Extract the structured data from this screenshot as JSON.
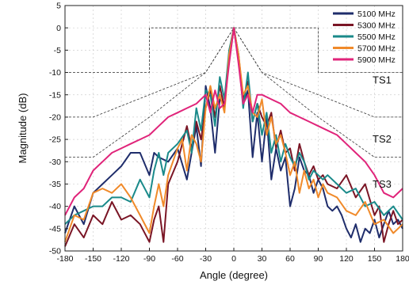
{
  "chart_data": {
    "type": "line",
    "xlabel": "Angle (degree)",
    "ylabel": "Magnitude (dB)",
    "xlim": [
      -180,
      180
    ],
    "ylim": [
      -50,
      5
    ],
    "xticks": [
      -180,
      -150,
      -120,
      -90,
      -60,
      -30,
      0,
      30,
      60,
      90,
      120,
      150,
      180
    ],
    "yticks": [
      5,
      0,
      -5,
      -10,
      -15,
      -20,
      -25,
      -30,
      -35,
      -40,
      -45,
      -50
    ],
    "grid": "dashed",
    "legend_placement": "top-right",
    "series": [
      {
        "name": "5100 MHz",
        "color": "#1f2d6b",
        "points": [
          [
            -180,
            -46
          ],
          [
            -170,
            -40
          ],
          [
            -160,
            -44
          ],
          [
            -150,
            -37
          ],
          [
            -140,
            -35
          ],
          [
            -130,
            -33
          ],
          [
            -120,
            -31
          ],
          [
            -110,
            -28
          ],
          [
            -100,
            -28
          ],
          [
            -90,
            -33
          ],
          [
            -85,
            -28
          ],
          [
            -80,
            -29
          ],
          [
            -70,
            -30
          ],
          [
            -60,
            -27
          ],
          [
            -50,
            -34
          ],
          [
            -40,
            -22
          ],
          [
            -35,
            -31
          ],
          [
            -30,
            -13
          ],
          [
            -25,
            -18
          ],
          [
            -20,
            -28
          ],
          [
            -15,
            -16
          ],
          [
            -10,
            -17
          ],
          [
            -5,
            -7
          ],
          [
            0,
            0
          ],
          [
            5,
            -7
          ],
          [
            10,
            -17
          ],
          [
            15,
            -14
          ],
          [
            20,
            -29
          ],
          [
            25,
            -19
          ],
          [
            30,
            -30
          ],
          [
            35,
            -20
          ],
          [
            40,
            -34
          ],
          [
            45,
            -27
          ],
          [
            50,
            -32
          ],
          [
            55,
            -29
          ],
          [
            60,
            -40
          ],
          [
            65,
            -36
          ],
          [
            70,
            -29
          ],
          [
            75,
            -32
          ],
          [
            80,
            -33
          ],
          [
            85,
            -37
          ],
          [
            90,
            -34
          ],
          [
            95,
            -36
          ],
          [
            100,
            -40
          ],
          [
            105,
            -41
          ],
          [
            110,
            -40
          ],
          [
            115,
            -42
          ],
          [
            120,
            -45
          ],
          [
            125,
            -47
          ],
          [
            130,
            -44
          ],
          [
            135,
            -48
          ],
          [
            140,
            -45
          ],
          [
            145,
            -46
          ],
          [
            150,
            -43
          ],
          [
            155,
            -47
          ],
          [
            160,
            -44
          ],
          [
            165,
            -41
          ],
          [
            170,
            -44
          ],
          [
            175,
            -43
          ],
          [
            180,
            -45
          ]
        ]
      },
      {
        "name": "5300 MHz",
        "color": "#7a1525",
        "points": [
          [
            -180,
            -49
          ],
          [
            -170,
            -44
          ],
          [
            -160,
            -47
          ],
          [
            -150,
            -42
          ],
          [
            -140,
            -44
          ],
          [
            -130,
            -39
          ],
          [
            -120,
            -43
          ],
          [
            -110,
            -42
          ],
          [
            -100,
            -44
          ],
          [
            -90,
            -48
          ],
          [
            -85,
            -43
          ],
          [
            -80,
            -40
          ],
          [
            -75,
            -48
          ],
          [
            -70,
            -35
          ],
          [
            -60,
            -30
          ],
          [
            -50,
            -22
          ],
          [
            -45,
            -27
          ],
          [
            -40,
            -21
          ],
          [
            -35,
            -25
          ],
          [
            -30,
            -18
          ],
          [
            -25,
            -14
          ],
          [
            -20,
            -20
          ],
          [
            -15,
            -13
          ],
          [
            -10,
            -18
          ],
          [
            -5,
            -6
          ],
          [
            0,
            0
          ],
          [
            5,
            -6
          ],
          [
            10,
            -16
          ],
          [
            15,
            -12
          ],
          [
            20,
            -21
          ],
          [
            25,
            -17
          ],
          [
            30,
            -20
          ],
          [
            35,
            -22
          ],
          [
            40,
            -19
          ],
          [
            45,
            -27
          ],
          [
            50,
            -23
          ],
          [
            55,
            -28
          ],
          [
            60,
            -27
          ],
          [
            65,
            -32
          ],
          [
            70,
            -26
          ],
          [
            75,
            -30
          ],
          [
            80,
            -33
          ],
          [
            85,
            -31
          ],
          [
            90,
            -34
          ],
          [
            95,
            -33
          ],
          [
            100,
            -35
          ],
          [
            110,
            -36
          ],
          [
            120,
            -33
          ],
          [
            130,
            -38
          ],
          [
            140,
            -35
          ],
          [
            150,
            -42
          ],
          [
            155,
            -40
          ],
          [
            160,
            -48
          ],
          [
            165,
            -44
          ],
          [
            170,
            -41
          ],
          [
            175,
            -44
          ],
          [
            180,
            -43
          ]
        ]
      },
      {
        "name": "5500 MHz",
        "color": "#1a8a8a",
        "points": [
          [
            -180,
            -44
          ],
          [
            -170,
            -42
          ],
          [
            -160,
            -41
          ],
          [
            -150,
            -40
          ],
          [
            -140,
            -40
          ],
          [
            -130,
            -38
          ],
          [
            -120,
            -38
          ],
          [
            -110,
            -39
          ],
          [
            -100,
            -34
          ],
          [
            -90,
            -38
          ],
          [
            -85,
            -32
          ],
          [
            -80,
            -28
          ],
          [
            -75,
            -33
          ],
          [
            -70,
            -28
          ],
          [
            -60,
            -26
          ],
          [
            -50,
            -23
          ],
          [
            -45,
            -28
          ],
          [
            -40,
            -18
          ],
          [
            -35,
            -23
          ],
          [
            -30,
            -14
          ],
          [
            -25,
            -15
          ],
          [
            -20,
            -22
          ],
          [
            -15,
            -11
          ],
          [
            -10,
            -16
          ],
          [
            -5,
            -5
          ],
          [
            0,
            0
          ],
          [
            5,
            -6
          ],
          [
            10,
            -18
          ],
          [
            15,
            -10
          ],
          [
            20,
            -21
          ],
          [
            25,
            -17
          ],
          [
            30,
            -24
          ],
          [
            35,
            -19
          ],
          [
            40,
            -28
          ],
          [
            45,
            -24
          ],
          [
            50,
            -30
          ],
          [
            55,
            -26
          ],
          [
            60,
            -29
          ],
          [
            65,
            -31
          ],
          [
            70,
            -28
          ],
          [
            75,
            -30
          ],
          [
            80,
            -34
          ],
          [
            85,
            -32
          ],
          [
            90,
            -33
          ],
          [
            95,
            -34
          ],
          [
            100,
            -33
          ],
          [
            110,
            -35
          ],
          [
            120,
            -37
          ],
          [
            130,
            -36
          ],
          [
            140,
            -40
          ],
          [
            150,
            -39
          ],
          [
            160,
            -42
          ],
          [
            170,
            -40
          ],
          [
            180,
            -43
          ]
        ]
      },
      {
        "name": "5700 MHz",
        "color": "#f08a2a",
        "points": [
          [
            -180,
            -48
          ],
          [
            -170,
            -42
          ],
          [
            -160,
            -43
          ],
          [
            -150,
            -37
          ],
          [
            -140,
            -36
          ],
          [
            -130,
            -37
          ],
          [
            -120,
            -35
          ],
          [
            -110,
            -38
          ],
          [
            -100,
            -42
          ],
          [
            -90,
            -46
          ],
          [
            -85,
            -40
          ],
          [
            -80,
            -35
          ],
          [
            -75,
            -40
          ],
          [
            -70,
            -33
          ],
          [
            -60,
            -27
          ],
          [
            -55,
            -25
          ],
          [
            -50,
            -32
          ],
          [
            -45,
            -24
          ],
          [
            -40,
            -26
          ],
          [
            -35,
            -30
          ],
          [
            -30,
            -18
          ],
          [
            -25,
            -13
          ],
          [
            -20,
            -18
          ],
          [
            -15,
            -15
          ],
          [
            -10,
            -19
          ],
          [
            -5,
            -6
          ],
          [
            0,
            0
          ],
          [
            5,
            -6
          ],
          [
            10,
            -15
          ],
          [
            15,
            -13
          ],
          [
            20,
            -19
          ],
          [
            25,
            -20
          ],
          [
            30,
            -16
          ],
          [
            35,
            -24
          ],
          [
            40,
            -20
          ],
          [
            45,
            -26
          ],
          [
            50,
            -24
          ],
          [
            55,
            -28
          ],
          [
            60,
            -33
          ],
          [
            65,
            -30
          ],
          [
            70,
            -37
          ],
          [
            75,
            -32
          ],
          [
            80,
            -36
          ],
          [
            85,
            -34
          ],
          [
            90,
            -38
          ],
          [
            95,
            -35
          ],
          [
            100,
            -37
          ],
          [
            110,
            -38
          ],
          [
            120,
            -41
          ],
          [
            130,
            -42
          ],
          [
            140,
            -39
          ],
          [
            150,
            -44
          ],
          [
            160,
            -43
          ],
          [
            170,
            -46
          ],
          [
            180,
            -44
          ]
        ]
      },
      {
        "name": "5900 MHz",
        "color": "#e0247a",
        "points": [
          [
            -180,
            -42
          ],
          [
            -170,
            -38
          ],
          [
            -160,
            -36
          ],
          [
            -150,
            -32
          ],
          [
            -140,
            -30
          ],
          [
            -130,
            -28
          ],
          [
            -120,
            -27
          ],
          [
            -110,
            -26
          ],
          [
            -100,
            -25
          ],
          [
            -90,
            -24
          ],
          [
            -80,
            -22
          ],
          [
            -70,
            -20
          ],
          [
            -60,
            -19
          ],
          [
            -50,
            -18
          ],
          [
            -40,
            -17
          ],
          [
            -30,
            -15
          ],
          [
            -25,
            -19
          ],
          [
            -20,
            -14
          ],
          [
            -15,
            -18
          ],
          [
            -10,
            -17
          ],
          [
            -5,
            -8
          ],
          [
            0,
            0
          ],
          [
            5,
            -8
          ],
          [
            10,
            -17
          ],
          [
            15,
            -15
          ],
          [
            20,
            -19
          ],
          [
            25,
            -15
          ],
          [
            30,
            -15
          ],
          [
            40,
            -16
          ],
          [
            50,
            -17
          ],
          [
            60,
            -19
          ],
          [
            70,
            -20
          ],
          [
            80,
            -21
          ],
          [
            90,
            -22
          ],
          [
            100,
            -23
          ],
          [
            110,
            -24
          ],
          [
            120,
            -26
          ],
          [
            130,
            -28
          ],
          [
            140,
            -30
          ],
          [
            150,
            -33
          ],
          [
            160,
            -37
          ],
          [
            170,
            -38
          ],
          [
            180,
            -36
          ]
        ]
      }
    ],
    "masks": [
      {
        "label": "TS1",
        "points": [
          [
            -180,
            -10
          ],
          [
            -90,
            -10
          ],
          [
            -90,
            0
          ],
          [
            90,
            0
          ],
          [
            90,
            -10
          ],
          [
            180,
            -10
          ]
        ]
      },
      {
        "label": "TS2",
        "points": [
          [
            -180,
            -20
          ],
          [
            -150,
            -20
          ],
          [
            -90,
            -15
          ],
          [
            -30,
            -10
          ],
          [
            0,
            0
          ],
          [
            30,
            -10
          ],
          [
            90,
            -15
          ],
          [
            150,
            -20
          ],
          [
            180,
            -20
          ]
        ]
      },
      {
        "label": "TS3",
        "points": [
          [
            -180,
            -29
          ],
          [
            -150,
            -29
          ],
          [
            -90,
            -20
          ],
          [
            -30,
            -10
          ],
          [
            0,
            0
          ],
          [
            30,
            -10
          ],
          [
            90,
            -20
          ],
          [
            150,
            -29
          ],
          [
            180,
            -29
          ]
        ]
      }
    ]
  }
}
